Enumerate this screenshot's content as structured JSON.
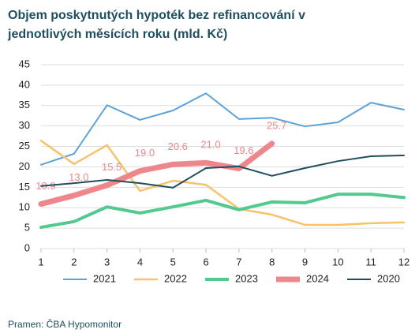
{
  "chart_data": {
    "type": "line",
    "title": [
      "Objem poskytnutých hypoték bez refinancování v",
      "jednotlivých měsících roku (mld. Kč)"
    ],
    "source": "Pramen: ČBA Hypomonitor",
    "x": [
      1,
      2,
      3,
      4,
      5,
      6,
      7,
      8,
      9,
      10,
      11,
      12
    ],
    "xlim": [
      1,
      12
    ],
    "xticks": [
      1,
      2,
      3,
      4,
      5,
      6,
      7,
      8,
      9,
      10,
      11,
      12
    ],
    "ylim": [
      0,
      45
    ],
    "yticks": [
      0,
      5,
      10,
      15,
      20,
      25,
      30,
      35,
      40,
      45
    ],
    "grid": true,
    "legend": "bottom",
    "series": [
      {
        "name": "2021",
        "color": "#5ba3d6",
        "width": 2,
        "values": [
          20.5,
          23.2,
          35.1,
          31.5,
          33.8,
          38.0,
          31.7,
          32.0,
          29.9,
          30.9,
          35.7,
          34.0
        ]
      },
      {
        "name": "2022",
        "color": "#f6c26b",
        "width": 2.5,
        "values": [
          26.4,
          20.7,
          25.3,
          14.1,
          16.6,
          15.6,
          9.7,
          8.3,
          5.8,
          5.8,
          6.2,
          6.4
        ]
      },
      {
        "name": "2023",
        "color": "#52c98e",
        "width": 4,
        "values": [
          5.2,
          6.6,
          10.2,
          8.7,
          10.2,
          11.8,
          9.5,
          11.4,
          11.2,
          13.3,
          13.3,
          12.5
        ]
      },
      {
        "name": "2024",
        "color": "#ee868b",
        "width": 7,
        "values": [
          10.9,
          13.0,
          15.5,
          19.0,
          20.6,
          21.0,
          19.6,
          25.7,
          null,
          null,
          null,
          null
        ],
        "value_labels": [
          "10.9",
          "13.0",
          "15.5",
          "19.0",
          "20.6",
          "21.0",
          "19.6",
          "25.7",
          null,
          null,
          null,
          null
        ]
      },
      {
        "name": "2020",
        "color": "#1f4e5f",
        "width": 2,
        "values": [
          15.3,
          16.0,
          16.8,
          16.0,
          14.9,
          19.7,
          20.1,
          17.8,
          19.7,
          21.4,
          22.6,
          22.8
        ]
      }
    ]
  }
}
